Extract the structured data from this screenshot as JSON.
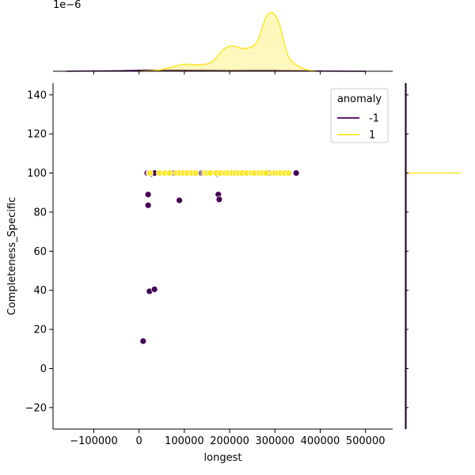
{
  "chart_data": {
    "type": "scatter",
    "title": "",
    "xlabel": "longest",
    "ylabel": "Completeness_Specific",
    "xlim": [
      -190000,
      560000
    ],
    "ylim": [
      -31,
      146
    ],
    "xticks": [
      -100000,
      0,
      100000,
      200000,
      300000,
      400000,
      500000
    ],
    "xtick_labels": [
      "−100000",
      "0",
      "100000",
      "200000",
      "300000",
      "400000",
      "500000"
    ],
    "yticks": [
      -20,
      0,
      20,
      40,
      60,
      80,
      100,
      120,
      140
    ],
    "ytick_labels": [
      "−20",
      "0",
      "20",
      "40",
      "60",
      "80",
      "100",
      "120",
      "140"
    ],
    "grid": false,
    "legend": {
      "title": "anomaly",
      "placement": "top-right"
    },
    "series": [
      {
        "name": "-1",
        "color": "#440154",
        "points": [
          [
            18000,
            100
          ],
          [
            22000,
            100
          ],
          [
            27000,
            99.5
          ],
          [
            31000,
            100
          ],
          [
            34000,
            100
          ],
          [
            78000,
            100
          ],
          [
            138000,
            100
          ],
          [
            142000,
            100
          ],
          [
            172000,
            99.5
          ],
          [
            175000,
            100
          ],
          [
            283000,
            100
          ],
          [
            289000,
            100
          ],
          [
            347000,
            100
          ],
          [
            20000,
            89
          ],
          [
            20000,
            83.5
          ],
          [
            89000,
            86
          ],
          [
            175000,
            89
          ],
          [
            177000,
            86.5
          ],
          [
            23000,
            39.5
          ],
          [
            34000,
            40.5
          ],
          [
            9000,
            14
          ]
        ]
      },
      {
        "name": "1",
        "color": "#fde725",
        "points": [
          [
            24000,
            100
          ],
          [
            45000,
            100
          ],
          [
            57000,
            100
          ],
          [
            67000,
            100
          ],
          [
            82000,
            100
          ],
          [
            90000,
            100
          ],
          [
            98000,
            100
          ],
          [
            106000,
            100
          ],
          [
            116000,
            100
          ],
          [
            125000,
            100
          ],
          [
            145000,
            100
          ],
          [
            150000,
            100
          ],
          [
            157000,
            100
          ],
          [
            170000,
            100
          ],
          [
            180000,
            100
          ],
          [
            190000,
            100
          ],
          [
            197000,
            100
          ],
          [
            205000,
            100
          ],
          [
            213000,
            100
          ],
          [
            220000,
            100
          ],
          [
            228000,
            100
          ],
          [
            238000,
            100
          ],
          [
            248000,
            100
          ],
          [
            255000,
            100
          ],
          [
            265000,
            100
          ],
          [
            272000,
            100
          ],
          [
            280000,
            100
          ],
          [
            293000,
            100
          ],
          [
            300000,
            100
          ],
          [
            307000,
            100
          ],
          [
            313000,
            100
          ],
          [
            322000,
            100
          ],
          [
            330000,
            100
          ]
        ]
      }
    ],
    "marginal_x": {
      "scale_label": "1e−6",
      "series": [
        {
          "name": "-1",
          "color": "#440154",
          "fill": false,
          "points": [
            [
              -160000,
              0
            ],
            [
              -50000,
              0.006
            ],
            [
              20000,
              0.013
            ],
            [
              100000,
              0.012
            ],
            [
              200000,
              0.009
            ],
            [
              300000,
              0.01
            ],
            [
              400000,
              0.003
            ],
            [
              500000,
              0
            ]
          ]
        },
        {
          "name": "1",
          "color": "#fde725",
          "fill": true,
          "points": [
            [
              0,
              0
            ],
            [
              40000,
              0.012
            ],
            [
              70000,
              0.05
            ],
            [
              100000,
              0.085
            ],
            [
              130000,
              0.08
            ],
            [
              160000,
              0.11
            ],
            [
              185000,
              0.26
            ],
            [
              205000,
              0.31
            ],
            [
              235000,
              0.28
            ],
            [
              260000,
              0.36
            ],
            [
              280000,
              0.66
            ],
            [
              295000,
              0.72
            ],
            [
              310000,
              0.58
            ],
            [
              330000,
              0.18
            ],
            [
              360000,
              0.04
            ],
            [
              390000,
              0
            ]
          ]
        }
      ]
    },
    "marginal_y": {
      "series": [
        {
          "name": "1",
          "color": "#fde725",
          "spike_at": 100
        },
        {
          "name": "-1",
          "color": "#440154",
          "baseline": true
        }
      ]
    }
  }
}
